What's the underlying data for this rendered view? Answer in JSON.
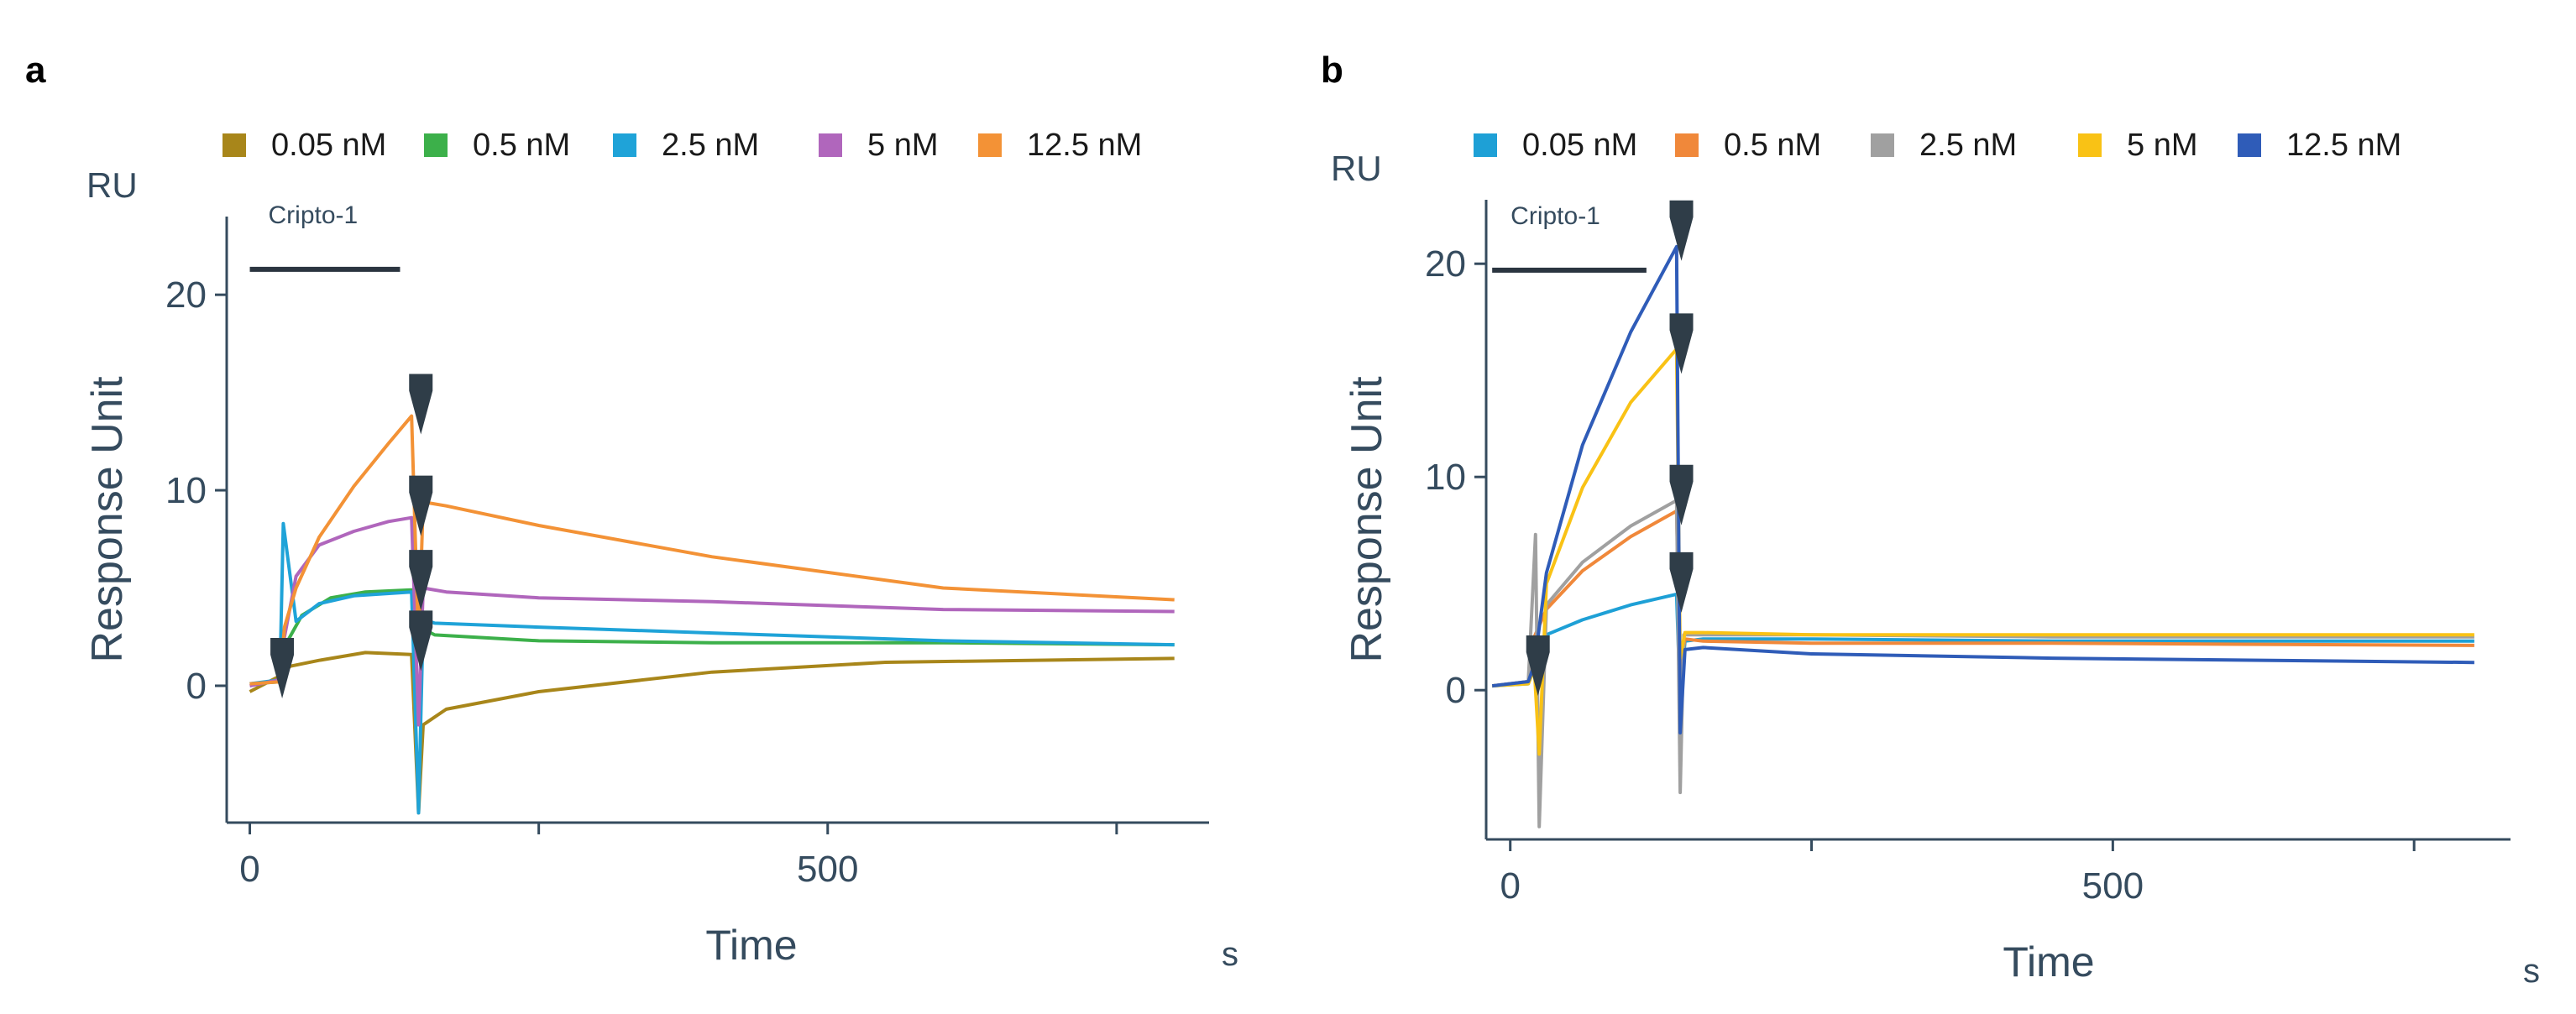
{
  "chart_data": [
    {
      "panel_label": "a",
      "type": "line",
      "ylabel": "Response Unit",
      "y_unit": "RU",
      "xlabel": "Time",
      "x_unit": "s",
      "xlim": [
        -20,
        830
      ],
      "ylim": [
        -7,
        24
      ],
      "x_ticks": [
        0,
        250,
        500,
        750
      ],
      "x_tick_labels": [
        "0",
        "",
        "500",
        ""
      ],
      "y_ticks": [
        0,
        10,
        20
      ],
      "y_tick_labels": [
        "0",
        "10",
        "20"
      ],
      "injection": {
        "label": "Cripto-1",
        "x_start": 0,
        "x_end": 130,
        "y": 21.3
      },
      "markers": [
        {
          "x": 28,
          "y": 0.3
        },
        {
          "x": 148,
          "y": 13.8
        },
        {
          "x": 148,
          "y": 8.6
        },
        {
          "x": 148,
          "y": 4.8
        },
        {
          "x": 148,
          "y": 1.7
        }
      ],
      "series": [
        {
          "name": "0.05 nM",
          "color": "#a8861a",
          "x": [
            0,
            26,
            35,
            60,
            100,
            140,
            146,
            150,
            170,
            250,
            400,
            550,
            800
          ],
          "y": [
            -0.3,
            0.5,
            1.0,
            1.3,
            1.7,
            1.6,
            -6.5,
            -2.0,
            -1.2,
            -0.3,
            0.7,
            1.2,
            1.4
          ]
        },
        {
          "name": "0.5 nM",
          "color": "#3cb04a",
          "x": [
            0,
            26,
            30,
            45,
            70,
            100,
            140,
            146,
            150,
            160,
            250,
            400,
            600,
            800
          ],
          "y": [
            0.1,
            0.2,
            2.0,
            3.6,
            4.5,
            4.8,
            4.9,
            -1.5,
            2.9,
            2.6,
            2.3,
            2.2,
            2.2,
            2.1
          ]
        },
        {
          "name": "2.5 nM",
          "color": "#1fa3d8",
          "x": [
            0,
            26,
            29,
            40,
            60,
            90,
            140,
            146,
            150,
            160,
            250,
            400,
            600,
            800
          ],
          "y": [
            0.1,
            0.3,
            8.3,
            3.3,
            4.2,
            4.6,
            4.8,
            -6.5,
            3.4,
            3.2,
            3.0,
            2.7,
            2.3,
            2.1
          ]
        },
        {
          "name": "5 nM",
          "color": "#b066bc",
          "x": [
            0,
            26,
            30,
            40,
            60,
            90,
            120,
            140,
            146,
            150,
            170,
            250,
            400,
            600,
            800
          ],
          "y": [
            0.0,
            0.3,
            2.5,
            5.6,
            7.2,
            7.9,
            8.4,
            8.6,
            -2.0,
            5.0,
            4.8,
            4.5,
            4.3,
            3.9,
            3.8
          ]
        },
        {
          "name": "12.5 nM",
          "color": "#f39236",
          "x": [
            0,
            26,
            30,
            40,
            60,
            90,
            120,
            140,
            146,
            150,
            170,
            250,
            400,
            600,
            800
          ],
          "y": [
            0.1,
            0.2,
            3.0,
            5.0,
            7.6,
            10.2,
            12.4,
            13.8,
            2.0,
            9.4,
            9.2,
            8.2,
            6.6,
            5.0,
            4.4
          ]
        }
      ]
    },
    {
      "panel_label": "b",
      "type": "line",
      "ylabel": "Response Unit",
      "y_unit": "RU",
      "xlabel": "Time",
      "x_unit": "s",
      "xlim": [
        -20,
        830
      ],
      "ylim": [
        -7,
        23
      ],
      "x_ticks": [
        0,
        250,
        500,
        750
      ],
      "x_tick_labels": [
        "0",
        "",
        "500",
        ""
      ],
      "y_ticks": [
        0,
        10,
        20
      ],
      "y_tick_labels": [
        "0",
        "10",
        "20"
      ],
      "injection": {
        "label": "Cripto-1",
        "x_start": -15,
        "x_end": 113,
        "y": 19.7
      },
      "markers": [
        {
          "x": 23,
          "y": 0.6
        },
        {
          "x": 142,
          "y": 21.0
        },
        {
          "x": 142,
          "y": 15.7
        },
        {
          "x": 142,
          "y": 8.6
        },
        {
          "x": 142,
          "y": 4.5
        }
      ],
      "series": [
        {
          "name": "0.05 nM",
          "color": "#1ea0d6",
          "x": [
            -15,
            15,
            20,
            30,
            60,
            100,
            138,
            141,
            145,
            160,
            250,
            450,
            800
          ],
          "y": [
            0.2,
            0.3,
            1.5,
            2.6,
            3.3,
            4.0,
            4.5,
            -0.5,
            2.3,
            2.4,
            2.4,
            2.3,
            2.3
          ]
        },
        {
          "name": "0.5 nM",
          "color": "#f0883a",
          "x": [
            -15,
            15,
            20,
            30,
            60,
            100,
            138,
            141,
            145,
            160,
            250,
            450,
            800
          ],
          "y": [
            0.2,
            0.4,
            2.5,
            3.8,
            5.6,
            7.2,
            8.4,
            1.0,
            2.4,
            2.3,
            2.2,
            2.2,
            2.1
          ]
        },
        {
          "name": "2.5 nM",
          "color": "#a0a0a0",
          "x": [
            -15,
            15,
            21,
            24,
            30,
            60,
            100,
            138,
            141,
            144,
            150,
            250,
            450,
            800
          ],
          "y": [
            0.2,
            0.4,
            7.3,
            -6.4,
            4.0,
            6.0,
            7.7,
            8.9,
            -4.8,
            2.6,
            2.6,
            2.6,
            2.5,
            2.5
          ]
        },
        {
          "name": "5 nM",
          "color": "#f9c215",
          "x": [
            -15,
            15,
            20,
            24,
            30,
            60,
            100,
            138,
            141,
            145,
            160,
            250,
            450,
            800
          ],
          "y": [
            0.2,
            0.3,
            1.0,
            -3.0,
            5.0,
            9.5,
            13.5,
            16.0,
            1.5,
            2.7,
            2.7,
            2.6,
            2.6,
            2.6
          ]
        },
        {
          "name": "12.5 nM",
          "color": "#2f5cb8",
          "x": [
            -15,
            15,
            20,
            30,
            60,
            100,
            138,
            141,
            145,
            160,
            250,
            450,
            800
          ],
          "y": [
            0.2,
            0.4,
            1.2,
            5.5,
            11.5,
            16.8,
            20.8,
            -2.0,
            1.9,
            2.0,
            1.7,
            1.5,
            1.3
          ]
        }
      ]
    }
  ]
}
